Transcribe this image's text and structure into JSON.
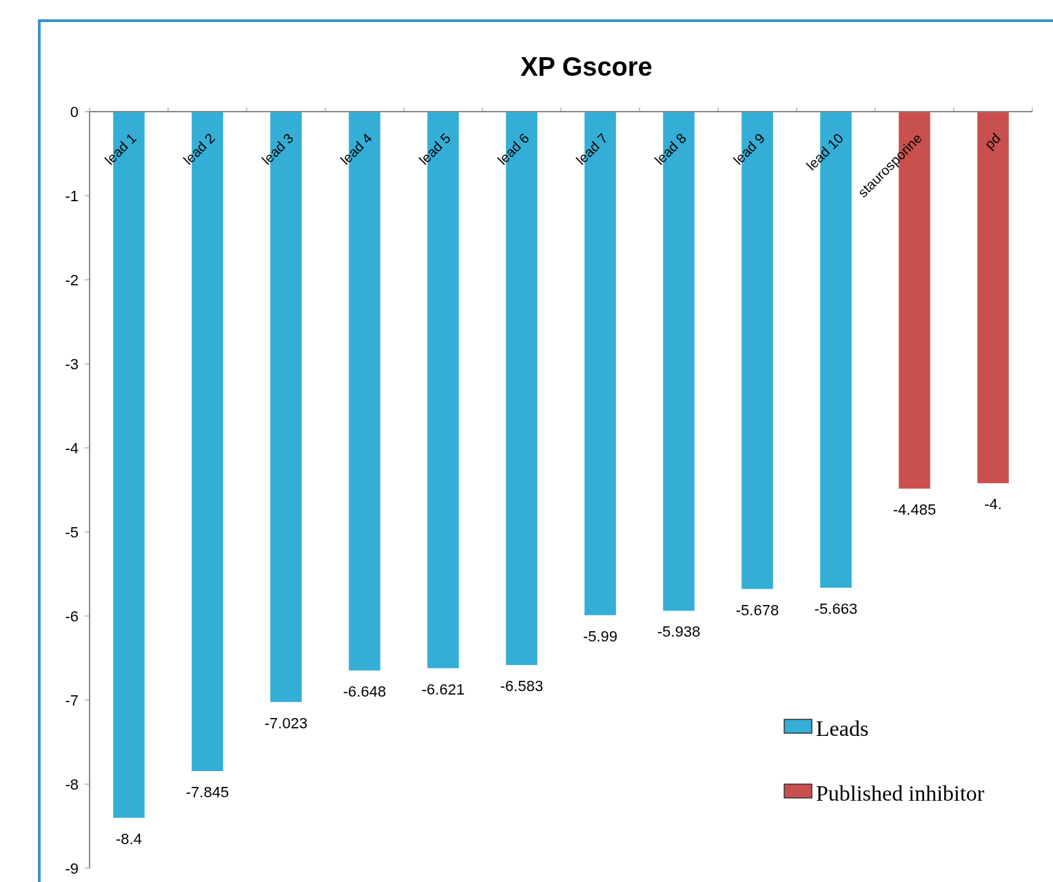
{
  "chart_data": {
    "type": "bar",
    "title": "XP Gscore",
    "categories": [
      "lead 1",
      "lead 2",
      "lead 3",
      "lead 4",
      "lead 5",
      "lead 6",
      "lead 7",
      "lead 8",
      "lead 9",
      "lead 10",
      "staurosporine",
      "pd"
    ],
    "series": [
      {
        "name": "Leads",
        "color": "#34aed6",
        "values": [
          -8.4,
          -7.845,
          -7.023,
          -6.648,
          -6.621,
          -6.583,
          -5.99,
          -5.938,
          -5.678,
          -5.663,
          null,
          null
        ],
        "value_labels": [
          "-8.4",
          "-7.845",
          "-7.023",
          "-6.648",
          "-6.621",
          "-6.583",
          "-5.99",
          "-5.938",
          "-5.678",
          "-5.663",
          null,
          null
        ]
      },
      {
        "name": "Published inhibitor",
        "color": "#c9504d",
        "values": [
          null,
          null,
          null,
          null,
          null,
          null,
          null,
          null,
          null,
          null,
          -4.485,
          -4.42
        ],
        "value_labels": [
          null,
          null,
          null,
          null,
          null,
          null,
          null,
          null,
          null,
          null,
          "-4.485",
          "-4."
        ]
      }
    ],
    "ylim": [
      -9,
      0
    ],
    "yticks": [
      -9,
      -8,
      -7,
      -6,
      -5,
      -4,
      -3,
      -2,
      -1,
      0
    ],
    "grid": false,
    "legend": "bottom right"
  }
}
